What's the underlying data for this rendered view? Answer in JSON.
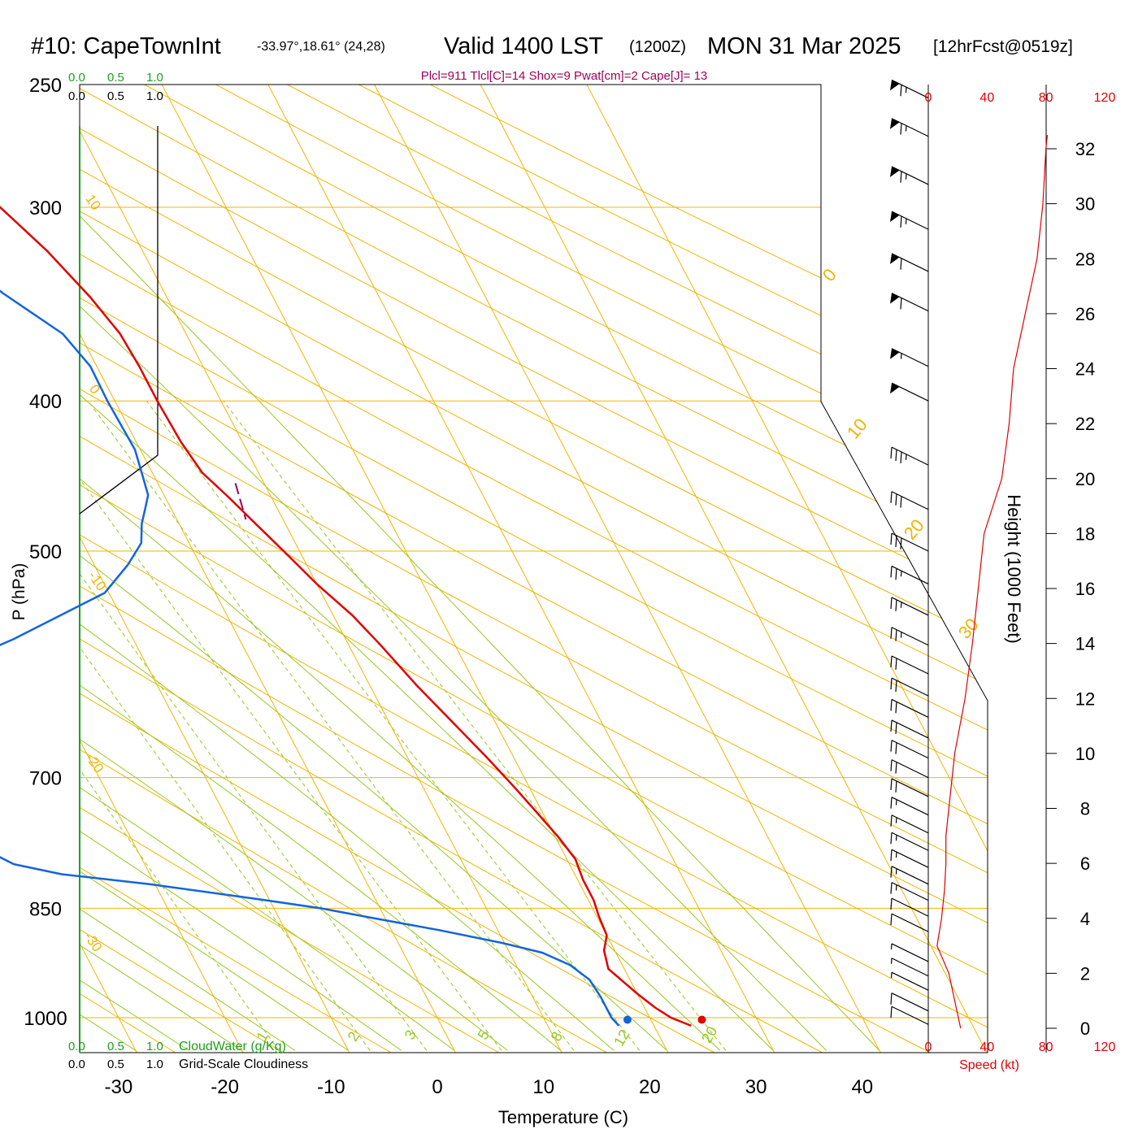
{
  "header": {
    "station": "#10: CapeTownInt",
    "coords": "-33.97°,18.61° (24,28)",
    "valid_prefix": "Valid 1400 LST",
    "utc": "(1200Z)",
    "date": "MON 31 Mar 2025",
    "forecast": "[12hrFcst@0519z]",
    "params": "Plcl=911 Tlcl[C]=14 Shox=9 Pwat[cm]=2 Cape[J]= 13"
  },
  "colors": {
    "temperature": "#e00000",
    "dewpoint": "#1464dc",
    "isobar": "#f0b400",
    "dry_adiabat": "#f0b400",
    "moist_adiabat": "#96c81e",
    "mixing_ratio": "#96c81e",
    "cloud_water": "#1ea01e",
    "parcel": "#960064",
    "speed": "#e00000",
    "params_text": "#a0005a"
  },
  "chart_data": {
    "type": "line",
    "xlabel": "Temperature (C)",
    "ylabel": "P (hPa)",
    "right_label": "Height (1000 Feet)",
    "x_ticks": [
      "-30",
      "-20",
      "-10",
      "0",
      "10",
      "20",
      "30",
      "40"
    ],
    "p_ticks": [
      {
        "p": 250,
        "label": "250"
      },
      {
        "p": 300,
        "label": "300"
      },
      {
        "p": 400,
        "label": "400"
      },
      {
        "p": 500,
        "label": "500"
      },
      {
        "p": 700,
        "label": "700"
      },
      {
        "p": 850,
        "label": "850"
      },
      {
        "p": 1000,
        "label": "1000"
      }
    ],
    "height_ticks": [
      "0",
      "2",
      "4",
      "6",
      "8",
      "10",
      "12",
      "14",
      "16",
      "18",
      "20",
      "22",
      "24",
      "26",
      "28",
      "30",
      "32"
    ],
    "isotherm_labels": [
      "0",
      "10",
      "20",
      "30"
    ],
    "dry_adiabat_labels": [
      "10",
      "0",
      "-10",
      "-20",
      "-30"
    ],
    "mixing_ratio_labels": [
      "1",
      "2",
      "3",
      "5",
      "8",
      "12",
      "20"
    ],
    "series": [
      {
        "name": "Temperature",
        "points": [
          [
            23.5,
            1012
          ],
          [
            22,
            1000
          ],
          [
            21,
            985
          ],
          [
            20,
            965
          ],
          [
            18.5,
            930
          ],
          [
            19,
            905
          ],
          [
            20,
            885
          ],
          [
            20.2,
            860
          ],
          [
            20.5,
            840
          ],
          [
            20.5,
            815
          ],
          [
            20.8,
            790
          ],
          [
            20.3,
            765
          ],
          [
            19.4,
            735
          ],
          [
            18.6,
            710
          ],
          [
            17.5,
            680
          ],
          [
            16,
            645
          ],
          [
            14.4,
            610
          ],
          [
            13,
            575
          ],
          [
            11.8,
            550
          ],
          [
            10,
            525
          ],
          [
            8.5,
            500
          ],
          [
            7.2,
            480
          ],
          [
            6,
            462
          ],
          [
            4.7,
            445
          ],
          [
            4.2,
            425
          ],
          [
            4,
            400
          ],
          [
            4,
            380
          ],
          [
            3.8,
            362
          ],
          [
            2.8,
            343
          ],
          [
            1,
            320
          ],
          [
            -1.5,
            298
          ],
          [
            -3.5,
            282
          ],
          [
            -5,
            271
          ]
        ]
      },
      {
        "name": "Dewpoint",
        "points": [
          [
            16.7,
            1012
          ],
          [
            16.4,
            1000
          ],
          [
            16.4,
            970
          ],
          [
            16.2,
            945
          ],
          [
            15.1,
            925
          ],
          [
            13.1,
            908
          ],
          [
            9.8,
            895
          ],
          [
            4.5,
            878
          ],
          [
            -1.3,
            862
          ],
          [
            -5.6,
            850
          ],
          [
            -10.3,
            840
          ],
          [
            -20.5,
            820
          ],
          [
            -28.3,
            808
          ],
          [
            -32.3,
            796
          ],
          [
            -34.2,
            780
          ],
          [
            -34.5,
            762
          ],
          [
            -33,
            747
          ],
          [
            -32.7,
            737
          ],
          [
            -33.2,
            722
          ],
          [
            -32.8,
            702
          ],
          [
            -32.5,
            678
          ],
          [
            -32.3,
            645
          ],
          [
            -33.5,
            622
          ],
          [
            -30.5,
            600
          ],
          [
            -21.3,
            570
          ],
          [
            -10.4,
            532
          ],
          [
            -6.8,
            510
          ],
          [
            -4.5,
            494
          ],
          [
            -3.5,
            480
          ],
          [
            -2.5,
            470
          ],
          [
            -1.5,
            460
          ],
          [
            -1,
            445
          ],
          [
            -0.5,
            430
          ],
          [
            -0.7,
            400
          ],
          [
            -0.6,
            380
          ],
          [
            -1.6,
            362
          ],
          [
            -5.2,
            341
          ],
          [
            -8.4,
            320
          ],
          [
            -12,
            295
          ],
          [
            -14.5,
            280
          ],
          [
            -16,
            271
          ]
        ]
      }
    ],
    "parcel_segment": [
      [
        7.3,
        452
      ],
      [
        6.5,
        477
      ]
    ],
    "surface_markers": {
      "temperature": [
        24.8,
        1003
      ],
      "dewpoint": [
        17.8,
        1003
      ]
    },
    "cloud_axis_labels": [
      "0.0",
      "0.5",
      "1.0"
    ],
    "cloud_water_label": "CloudWater (g/Kg)",
    "cloudiness_label": "Grid-Scale Cloudiness",
    "speed_axis": {
      "ticks": [
        "0",
        "40",
        "80",
        "120"
      ],
      "label": "Speed (kt)",
      "range": [
        0,
        120
      ]
    },
    "wind_speed_profile": {
      "height_kft": [
        0,
        0.5,
        1,
        1.5,
        2,
        3,
        4,
        5,
        6,
        7,
        8,
        10,
        12,
        14,
        16,
        18,
        20,
        22,
        24,
        26,
        28,
        30,
        32,
        32.5
      ],
      "speed_kt": [
        22,
        20,
        18,
        16,
        14,
        6,
        9,
        11,
        12,
        12,
        14,
        18,
        25,
        30,
        34,
        38,
        50,
        55,
        58,
        66,
        74,
        78,
        80,
        81
      ]
    },
    "wind_barbs": [
      {
        "p": 1010,
        "flags": 0,
        "full": 1,
        "half": 0
      },
      {
        "p": 990,
        "flags": 0,
        "full": 1,
        "half": 0
      },
      {
        "p": 960,
        "flags": 0,
        "full": 0,
        "half": 1
      },
      {
        "p": 940,
        "flags": 0,
        "full": 0,
        "half": 1
      },
      {
        "p": 920,
        "flags": 0,
        "full": 0,
        "half": 1
      },
      {
        "p": 880,
        "flags": 0,
        "full": 1,
        "half": 0
      },
      {
        "p": 860,
        "flags": 0,
        "full": 1,
        "half": 0
      },
      {
        "p": 840,
        "flags": 0,
        "full": 1,
        "half": 1
      },
      {
        "p": 820,
        "flags": 0,
        "full": 1,
        "half": 1
      },
      {
        "p": 800,
        "flags": 0,
        "full": 1,
        "half": 1
      },
      {
        "p": 780,
        "flags": 0,
        "full": 1,
        "half": 1
      },
      {
        "p": 760,
        "flags": 0,
        "full": 1,
        "half": 1
      },
      {
        "p": 740,
        "flags": 0,
        "full": 1,
        "half": 1
      },
      {
        "p": 720,
        "flags": 0,
        "full": 2,
        "half": 0
      },
      {
        "p": 700,
        "flags": 0,
        "full": 2,
        "half": 0
      },
      {
        "p": 680,
        "flags": 0,
        "full": 2,
        "half": 0
      },
      {
        "p": 660,
        "flags": 0,
        "full": 2,
        "half": 0
      },
      {
        "p": 640,
        "flags": 0,
        "full": 2,
        "half": 0
      },
      {
        "p": 620,
        "flags": 0,
        "full": 2,
        "half": 0
      },
      {
        "p": 600,
        "flags": 0,
        "full": 2,
        "half": 0
      },
      {
        "p": 575,
        "flags": 0,
        "full": 2,
        "half": 1
      },
      {
        "p": 550,
        "flags": 0,
        "full": 2,
        "half": 1
      },
      {
        "p": 525,
        "flags": 0,
        "full": 2,
        "half": 1
      },
      {
        "p": 500,
        "flags": 0,
        "full": 3,
        "half": 0
      },
      {
        "p": 470,
        "flags": 0,
        "full": 3,
        "half": 0
      },
      {
        "p": 440,
        "flags": 0,
        "full": 3,
        "half": 1
      },
      {
        "p": 400,
        "flags": 1,
        "full": 0,
        "half": 0
      },
      {
        "p": 380,
        "flags": 1,
        "full": 0,
        "half": 1
      },
      {
        "p": 350,
        "flags": 1,
        "full": 1,
        "half": 0
      },
      {
        "p": 330,
        "flags": 1,
        "full": 1,
        "half": 0
      },
      {
        "p": 310,
        "flags": 1,
        "full": 1,
        "half": 1
      },
      {
        "p": 290,
        "flags": 1,
        "full": 1,
        "half": 1
      },
      {
        "p": 270,
        "flags": 1,
        "full": 1,
        "half": 1
      },
      {
        "p": 255,
        "flags": 1,
        "full": 1,
        "half": 1
      }
    ]
  }
}
